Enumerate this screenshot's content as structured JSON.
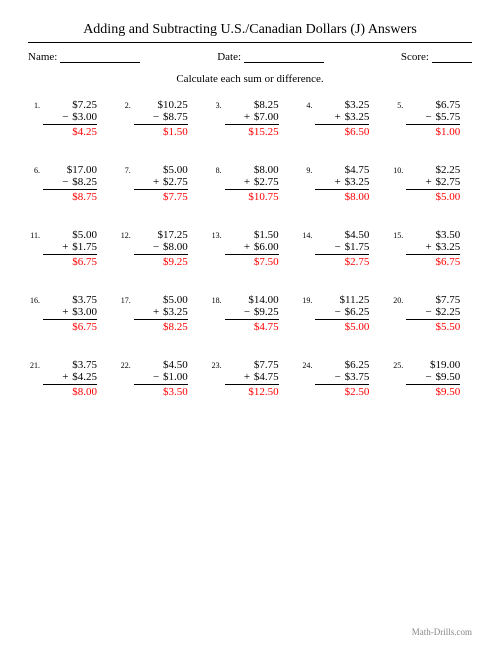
{
  "title": "Adding and Subtracting U.S./Canadian Dollars (J) Answers",
  "meta": {
    "name_label": "Name:",
    "date_label": "Date:",
    "score_label": "Score:"
  },
  "instruction": "Calculate each sum or difference.",
  "footer": "Math-Drills.com",
  "answer_color": "#ff0000",
  "problems": [
    {
      "n": "1.",
      "a": "$7.25",
      "op": "−",
      "b": "$3.00",
      "ans": "$4.25"
    },
    {
      "n": "2.",
      "a": "$10.25",
      "op": "−",
      "b": "$8.75",
      "ans": "$1.50"
    },
    {
      "n": "3.",
      "a": "$8.25",
      "op": "+",
      "b": "$7.00",
      "ans": "$15.25"
    },
    {
      "n": "4.",
      "a": "$3.25",
      "op": "+",
      "b": "$3.25",
      "ans": "$6.50"
    },
    {
      "n": "5.",
      "a": "$6.75",
      "op": "−",
      "b": "$5.75",
      "ans": "$1.00"
    },
    {
      "n": "6.",
      "a": "$17.00",
      "op": "−",
      "b": "$8.25",
      "ans": "$8.75"
    },
    {
      "n": "7.",
      "a": "$5.00",
      "op": "+",
      "b": "$2.75",
      "ans": "$7.75"
    },
    {
      "n": "8.",
      "a": "$8.00",
      "op": "+",
      "b": "$2.75",
      "ans": "$10.75"
    },
    {
      "n": "9.",
      "a": "$4.75",
      "op": "+",
      "b": "$3.25",
      "ans": "$8.00"
    },
    {
      "n": "10.",
      "a": "$2.25",
      "op": "+",
      "b": "$2.75",
      "ans": "$5.00"
    },
    {
      "n": "11.",
      "a": "$5.00",
      "op": "+",
      "b": "$1.75",
      "ans": "$6.75"
    },
    {
      "n": "12.",
      "a": "$17.25",
      "op": "−",
      "b": "$8.00",
      "ans": "$9.25"
    },
    {
      "n": "13.",
      "a": "$1.50",
      "op": "+",
      "b": "$6.00",
      "ans": "$7.50"
    },
    {
      "n": "14.",
      "a": "$4.50",
      "op": "−",
      "b": "$1.75",
      "ans": "$2.75"
    },
    {
      "n": "15.",
      "a": "$3.50",
      "op": "+",
      "b": "$3.25",
      "ans": "$6.75"
    },
    {
      "n": "16.",
      "a": "$3.75",
      "op": "+",
      "b": "$3.00",
      "ans": "$6.75"
    },
    {
      "n": "17.",
      "a": "$5.00",
      "op": "+",
      "b": "$3.25",
      "ans": "$8.25"
    },
    {
      "n": "18.",
      "a": "$14.00",
      "op": "−",
      "b": "$9.25",
      "ans": "$4.75"
    },
    {
      "n": "19.",
      "a": "$11.25",
      "op": "−",
      "b": "$6.25",
      "ans": "$5.00"
    },
    {
      "n": "20.",
      "a": "$7.75",
      "op": "−",
      "b": "$2.25",
      "ans": "$5.50"
    },
    {
      "n": "21.",
      "a": "$3.75",
      "op": "+",
      "b": "$4.25",
      "ans": "$8.00"
    },
    {
      "n": "22.",
      "a": "$4.50",
      "op": "−",
      "b": "$1.00",
      "ans": "$3.50"
    },
    {
      "n": "23.",
      "a": "$7.75",
      "op": "+",
      "b": "$4.75",
      "ans": "$12.50"
    },
    {
      "n": "24.",
      "a": "$6.25",
      "op": "−",
      "b": "$3.75",
      "ans": "$2.50"
    },
    {
      "n": "25.",
      "a": "$19.00",
      "op": "−",
      "b": "$9.50",
      "ans": "$9.50"
    }
  ]
}
